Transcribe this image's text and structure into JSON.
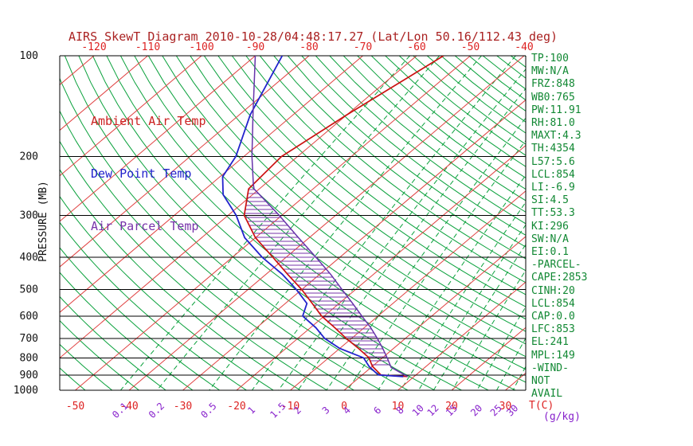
{
  "title": "AIRS SkewT Diagram 2010-10-28/04:48:17.27 (Lat/Lon 50.16/112.43 deg)",
  "colors": {
    "title": "#aa2222",
    "temp_ticks": "#dd2222",
    "mixing_ticks": "#8822cc",
    "pressure_ticks": "#111111",
    "isotherm": "#e04040",
    "dry_adiabat": "#0aa13c",
    "mixing_line": "#0aa13c",
    "pressure_line": "#000000",
    "frame": "#000000",
    "stats_text": "#118833",
    "hatch": "#7733aa"
  },
  "legend": [
    {
      "label": "Ambient Air Temp",
      "color": "#cc2222"
    },
    {
      "label": "Dew Point Temp",
      "color": "#2222cc"
    },
    {
      "label": "Air Parcel Temp",
      "color": "#7733aa"
    }
  ],
  "axes": {
    "pressure_label": "PRESSURE (MB)",
    "pressure_ticks": [
      100,
      200,
      300,
      400,
      500,
      600,
      700,
      800,
      900,
      1000
    ],
    "top_temp_ticks": [
      -120,
      -110,
      -100,
      -90,
      -80,
      -70,
      -60,
      -50,
      -40
    ],
    "bottom_temp_ticks": [
      -50,
      -40,
      -30,
      -20,
      -10,
      0,
      10,
      20,
      30
    ],
    "mixing_ratio_ticks": [
      0.1,
      0.2,
      0.5,
      1,
      1.5,
      2,
      3,
      4,
      6,
      8,
      10,
      12,
      15,
      20,
      25,
      30
    ],
    "temp_unit_label": "T(C)",
    "mixing_unit_label": "(g/kg)"
  },
  "stats_panel": [
    "TP:100",
    "MW:N/A",
    "FRZ:848",
    "WB0:765",
    "PW:11.91",
    "RH:81.0",
    "MAXT:4.3",
    "TH:4354",
    "L57:5.6",
    "LCL:854",
    "LI:-6.9",
    "SI:4.5",
    "TT:53.3",
    "KI:296",
    "SW:N/A",
    "EI:0.1",
    "-PARCEL-",
    "CAPE:2853",
    "CINH:20",
    "LCL:854",
    "CAP:0.0",
    "LFC:853",
    "EL:241",
    "MPL:149",
    "-WIND-",
    "NOT",
    "AVAIL"
  ],
  "chart_data": {
    "type": "line",
    "description": "Skew-T log-P atmospheric sounding diagram",
    "pressure_axis": {
      "label": "PRESSURE (MB)",
      "range": [
        100,
        1000
      ],
      "scale": "log"
    },
    "temp_axis": {
      "label": "T(C)",
      "top_row_range": [
        -120,
        -40
      ],
      "bottom_row_range": [
        -50,
        30
      ]
    },
    "grid": {
      "isotherms_c": {
        "min": -130,
        "max": 30,
        "step": 10
      },
      "dry_adiabats_theta_k": {
        "min": 220,
        "max": 450,
        "step": 5
      },
      "mixing_ratio_g_kg": [
        0.1,
        0.2,
        0.5,
        1,
        1.5,
        2,
        3,
        4,
        6,
        8,
        10,
        12,
        15,
        20,
        25,
        30
      ]
    },
    "series": [
      {
        "name": "Ambient Air Temp",
        "color": "#cc1111",
        "points": [
          [
            100,
            -55
          ],
          [
            150,
            -60
          ],
          [
            200,
            -63
          ],
          [
            250,
            -62
          ],
          [
            300,
            -57
          ],
          [
            350,
            -50
          ],
          [
            400,
            -42.5
          ],
          [
            450,
            -36
          ],
          [
            500,
            -30
          ],
          [
            550,
            -25
          ],
          [
            600,
            -20.5
          ],
          [
            650,
            -15.5
          ],
          [
            700,
            -11
          ],
          [
            750,
            -6.5
          ],
          [
            800,
            -2.5
          ],
          [
            848,
            0
          ],
          [
            900,
            3.5
          ],
          [
            910,
            8.8
          ]
        ]
      },
      {
        "name": "Dew Point Temp",
        "color": "#2222cc",
        "points": [
          [
            100,
            -85
          ],
          [
            150,
            -78
          ],
          [
            200,
            -71.5
          ],
          [
            230,
            -69.5
          ],
          [
            260,
            -65.5
          ],
          [
            300,
            -58.5
          ],
          [
            350,
            -52
          ],
          [
            400,
            -44.5
          ],
          [
            450,
            -37
          ],
          [
            500,
            -31
          ],
          [
            550,
            -26
          ],
          [
            600,
            -24
          ],
          [
            650,
            -19
          ],
          [
            700,
            -15
          ],
          [
            750,
            -10
          ],
          [
            800,
            -3.5
          ],
          [
            850,
            -0.5
          ],
          [
            900,
            3
          ],
          [
            910,
            8
          ]
        ]
      },
      {
        "name": "Air Parcel Temp",
        "color": "#6633aa",
        "points": [
          [
            100,
            -90
          ],
          [
            150,
            -77.5
          ],
          [
            200,
            -68.5
          ],
          [
            241,
            -62.3
          ],
          [
            250,
            -61
          ],
          [
            275,
            -55.5
          ],
          [
            300,
            -50.5
          ],
          [
            350,
            -42
          ],
          [
            400,
            -34.5
          ],
          [
            450,
            -28
          ],
          [
            500,
            -22.5
          ],
          [
            550,
            -17.5
          ],
          [
            600,
            -13
          ],
          [
            650,
            -8.8
          ],
          [
            700,
            -5.2
          ],
          [
            750,
            -2
          ],
          [
            800,
            0.9
          ],
          [
            854,
            3.7
          ],
          [
            880,
            6.1
          ],
          [
            910,
            8.8
          ]
        ]
      }
    ],
    "hatch_region": {
      "between": [
        "Ambient Air Temp",
        "Air Parcel Temp"
      ],
      "top_pressure": 241,
      "bottom_pressure": 854,
      "color": "#7733aa"
    }
  }
}
